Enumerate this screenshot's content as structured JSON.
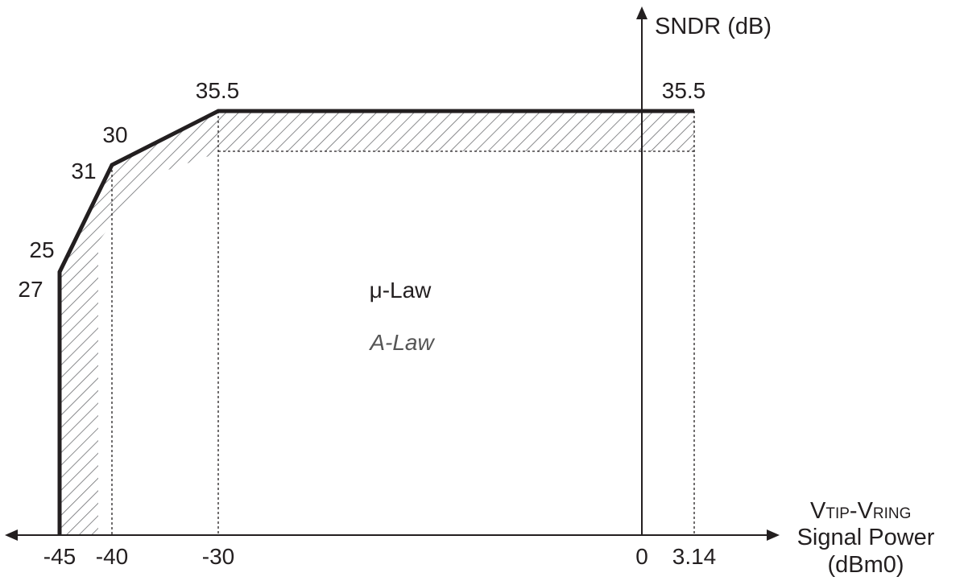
{
  "chart_data": {
    "type": "line",
    "title": "",
    "xlabel": {
      "voltage_main_1": "V",
      "voltage_sub_1": "TIP",
      "voltage_dash": "-",
      "voltage_main_2": "V",
      "voltage_sub_2": "RING",
      "line2": "Signal Power",
      "line3": "(dBm0)"
    },
    "ylabel": "SNDR (dB)",
    "x_ticks": [
      {
        "value": -45,
        "label": "-45"
      },
      {
        "value": -40,
        "label": "-40"
      },
      {
        "value": -30,
        "label": "-30"
      },
      {
        "value": 0,
        "label": "0"
      },
      {
        "value": 3.14,
        "label": "3.14"
      }
    ],
    "series": [
      {
        "name": "μ-Law",
        "points": [
          {
            "x": -45,
            "y": 27
          },
          {
            "x": -40,
            "y": 31
          },
          {
            "x": -30,
            "y": 35.5
          },
          {
            "x": 3.14,
            "y": 35.5
          }
        ]
      },
      {
        "name": "A-Law",
        "points": [
          {
            "x": -45,
            "y": 25
          },
          {
            "x": -40,
            "y": 30
          },
          {
            "x": -30,
            "y": 35.5
          },
          {
            "x": 3.14,
            "y": 35.5
          }
        ]
      }
    ],
    "value_labels": {
      "top_left": "35.5",
      "top_right": "35.5",
      "mu_at_minus40": "31",
      "a_at_minus40": "30",
      "a_at_minus45": "25",
      "mu_at_minus45": "27"
    },
    "region_labels": {
      "mu_law": "μ-Law",
      "a_law": "A-Law"
    },
    "colors": {
      "line": "#231f20",
      "hatch": "#6d6e71"
    }
  }
}
